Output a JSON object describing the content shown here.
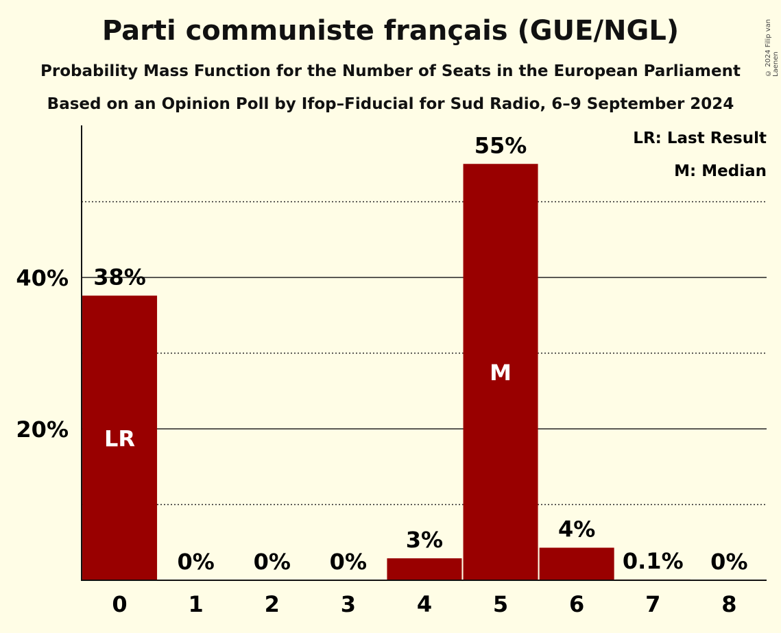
{
  "title": "Parti communiste français (GUE/NGL)",
  "subtitle1": "Probability Mass Function for the Number of Seats in the European Parliament",
  "subtitle2": "Based on an Opinion Poll by Ifop–Fiducial for Sud Radio, 6–9 September 2024",
  "copyright": "© 2024 Filip van Laenen",
  "legend": {
    "lr": "LR: Last Result",
    "m": "M: Median"
  },
  "colors": {
    "bar": "#990000",
    "background": "#fffde6"
  },
  "chart_data": {
    "type": "bar",
    "title": "Parti communiste français (GUE/NGL)",
    "xlabel": "",
    "ylabel": "",
    "categories": [
      "0",
      "1",
      "2",
      "3",
      "4",
      "5",
      "6",
      "7",
      "8"
    ],
    "values": [
      37.6,
      0,
      0,
      0,
      2.9,
      55.0,
      4.3,
      0.1,
      0
    ],
    "value_labels": [
      "38%",
      "0%",
      "0%",
      "0%",
      "3%",
      "55%",
      "4%",
      "0.1%",
      "0%"
    ],
    "bar_markers": {
      "0": "LR",
      "5": "M"
    },
    "ylim": [
      0,
      60
    ],
    "y_ticks": [
      {
        "value": 20,
        "label": "20%"
      },
      {
        "value": 40,
        "label": "40%"
      }
    ],
    "dotted_gridlines": [
      10,
      30,
      50
    ],
    "solid_gridlines": [
      20,
      40
    ]
  }
}
